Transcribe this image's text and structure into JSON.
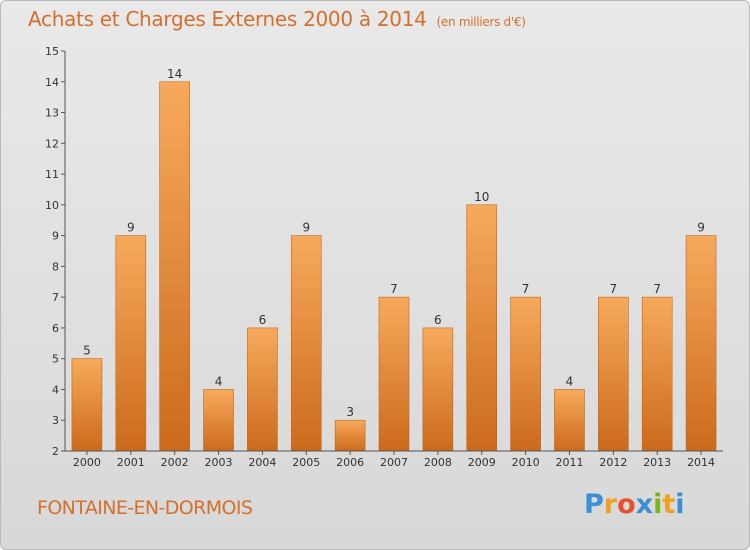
{
  "header": {
    "title": "Achats et Charges Externes 2000 à 2014",
    "unit": "(en milliers d'€)"
  },
  "footer": {
    "commune": "FONTAINE-EN-DORMOIS",
    "logo_letters": [
      "P",
      "r",
      "o",
      "x",
      "i",
      "t",
      "i"
    ],
    "logo_colors": [
      "#3a8fd6",
      "#f0a020",
      "#e84f2f",
      "#3a8fd6",
      "#7ab51d",
      "#f0a020",
      "#3a8fd6"
    ]
  },
  "colors": {
    "accent": "#d4702e",
    "bar_light": "#f6a85a",
    "bar_dark": "#cc6a1c"
  },
  "chart_data": {
    "type": "bar",
    "title": "Achats et Charges Externes 2000 à 2014",
    "subtitle": "(en milliers d'€)",
    "xlabel": "",
    "ylabel": "",
    "categories": [
      "2000",
      "2001",
      "2002",
      "2003",
      "2004",
      "2005",
      "2006",
      "2007",
      "2008",
      "2009",
      "2010",
      "2011",
      "2012",
      "2013",
      "2014"
    ],
    "values": [
      5,
      9,
      14,
      4,
      6,
      9,
      3,
      7,
      6,
      10,
      7,
      4,
      7,
      7,
      9
    ],
    "ylim": [
      2,
      15
    ],
    "yticks": [
      2,
      3,
      4,
      5,
      6,
      7,
      8,
      9,
      10,
      11,
      12,
      13,
      14,
      15
    ],
    "grid": false,
    "data_labels": true,
    "legend": "none"
  }
}
